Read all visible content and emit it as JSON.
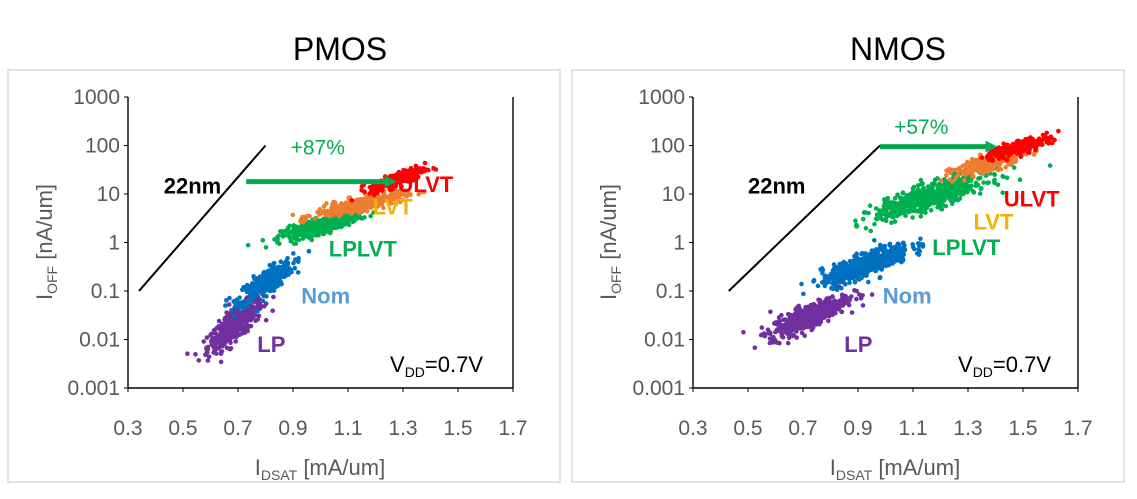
{
  "chart_data": [
    {
      "type": "scatter",
      "title": "PMOS",
      "xlabel": {
        "main": "I",
        "sub": "DSAT",
        "unit": " [mA/um]"
      },
      "ylabel": {
        "main": "I",
        "sub": "OFF",
        "unit": " [nA/um]"
      },
      "xlim": [
        0.3,
        1.7
      ],
      "ylim": [
        0.001,
        1000
      ],
      "yscale": "log",
      "xticks": [
        "0.3",
        "0.5",
        "0.7",
        "0.9",
        "1.1",
        "1.3",
        "1.5",
        "1.7"
      ],
      "yticks": [
        "0.001",
        "0.01",
        "0.1",
        "1",
        "10",
        "100",
        "1000"
      ],
      "grid": false,
      "series": [
        {
          "name": "LP",
          "color": "#7030A0",
          "center": [
            0.69,
            0.02
          ],
          "x_spread": 0.05,
          "logy_spread": 0.45,
          "count": 420
        },
        {
          "name": "Nom",
          "color": "#0070C0",
          "center": [
            0.8,
            0.15
          ],
          "x_spread": 0.05,
          "logy_spread": 0.35,
          "count": 350
        },
        {
          "name": "LPLVT",
          "color": "#00B050",
          "center": [
            1.0,
            2.2
          ],
          "x_spread": 0.07,
          "logy_spread": 0.22,
          "count": 400
        },
        {
          "name": "LVT",
          "color": "#ED7D31",
          "center": [
            1.14,
            6.0
          ],
          "x_spread": 0.08,
          "logy_spread": 0.2,
          "count": 350
        },
        {
          "name": "ULVT",
          "color": "#FF0000",
          "center": [
            1.28,
            20.0
          ],
          "x_spread": 0.05,
          "logy_spread": 0.2,
          "count": 250
        }
      ],
      "labels": [
        {
          "text": "LP",
          "color": "#7030A0",
          "at": [
            0.77,
            0.008
          ]
        },
        {
          "text": "Nom",
          "color": "#5B9BD5",
          "at": [
            0.93,
            0.08
          ]
        },
        {
          "text": "LPLVT",
          "color": "#00B050",
          "at": [
            1.03,
            0.75
          ]
        },
        {
          "text": "LVT",
          "color": "#F0B400",
          "at": [
            1.19,
            5.5
          ]
        },
        {
          "text": "ULVT",
          "color": "#FF0000",
          "at": [
            1.28,
            16
          ]
        },
        {
          "text": "22nm",
          "color": "#000000",
          "at": [
            0.43,
            15
          ]
        }
      ],
      "reference_line": {
        "from": [
          0.34,
          0.1
        ],
        "to": [
          0.8,
          100
        ]
      },
      "improvement": {
        "text": "+87%",
        "color": "#00B050",
        "arrow_from": [
          0.73,
          18
        ],
        "arrow_to": [
          1.27,
          18
        ],
        "text_at": [
          0.99,
          95
        ]
      },
      "vdd": {
        "main": "V",
        "sub": "DD",
        "rest": "=0.7V"
      }
    },
    {
      "type": "scatter",
      "title": "NMOS",
      "xlabel": {
        "main": "I",
        "sub": "DSAT",
        "unit": " [mA/um]"
      },
      "ylabel": {
        "main": "I",
        "sub": "OFF",
        "unit": " [nA/um]"
      },
      "xlim": [
        0.3,
        1.7
      ],
      "ylim": [
        0.001,
        1000
      ],
      "yscale": "log",
      "xticks": [
        "0.3",
        "0.5",
        "0.7",
        "0.9",
        "1.1",
        "1.3",
        "1.5",
        "1.7"
      ],
      "yticks": [
        "0.001",
        "0.01",
        "0.1",
        "1",
        "10",
        "100",
        "1000"
      ],
      "grid": false,
      "series": [
        {
          "name": "LP",
          "color": "#7030A0",
          "center": [
            0.72,
            0.03
          ],
          "x_spread": 0.07,
          "logy_spread": 0.35,
          "count": 500
        },
        {
          "name": "Nom",
          "color": "#0070C0",
          "center": [
            0.93,
            0.35
          ],
          "x_spread": 0.08,
          "logy_spread": 0.35,
          "count": 500
        },
        {
          "name": "LPLVT",
          "color": "#00B050",
          "center": [
            1.17,
            9.0
          ],
          "x_spread": 0.1,
          "logy_spread": 0.35,
          "count": 650
        },
        {
          "name": "LVT",
          "color": "#ED7D31",
          "center": [
            1.38,
            45.0
          ],
          "x_spread": 0.07,
          "logy_spread": 0.25,
          "count": 300
        },
        {
          "name": "ULVT",
          "color": "#FF0000",
          "center": [
            1.48,
            90.0
          ],
          "x_spread": 0.06,
          "logy_spread": 0.2,
          "count": 200
        }
      ],
      "labels": [
        {
          "text": "LP",
          "color": "#7030A0",
          "at": [
            0.85,
            0.008
          ]
        },
        {
          "text": "Nom",
          "color": "#5B9BD5",
          "at": [
            0.99,
            0.08
          ]
        },
        {
          "text": "LPLVT",
          "color": "#00B050",
          "at": [
            1.17,
            0.8
          ]
        },
        {
          "text": "LVT",
          "color": "#F0B400",
          "at": [
            1.32,
            2.7
          ]
        },
        {
          "text": "ULVT",
          "color": "#FF0000",
          "at": [
            1.43,
            8
          ]
        },
        {
          "text": "22nm",
          "color": "#000000",
          "at": [
            0.5,
            15
          ]
        }
      ],
      "reference_line": {
        "from": [
          0.43,
          0.1
        ],
        "to": [
          0.98,
          100
        ]
      },
      "improvement": {
        "text": "+57%",
        "color": "#00B050",
        "arrow_from": [
          0.98,
          95
        ],
        "arrow_to": [
          1.4,
          95
        ],
        "text_at": [
          1.13,
          250
        ]
      },
      "vdd": {
        "main": "V",
        "sub": "DD",
        "rest": "=0.7V"
      }
    }
  ]
}
